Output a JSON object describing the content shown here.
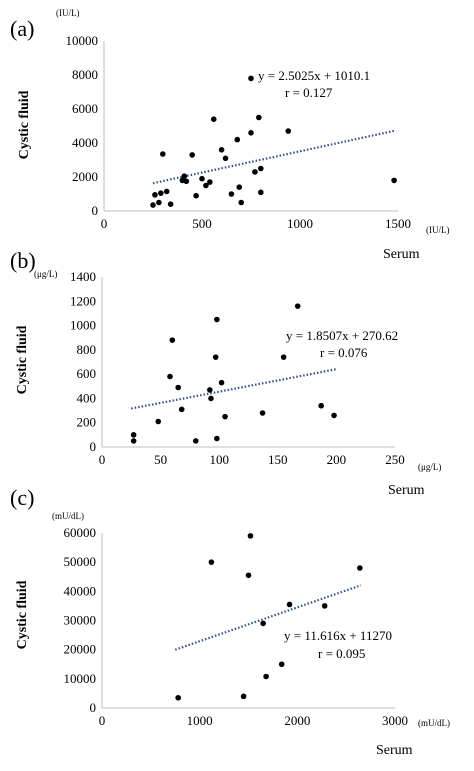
{
  "chart_data": [
    {
      "type": "scatter",
      "panel": "(a)",
      "y_unit": "(IU/L)",
      "x_unit": "(IU/L)",
      "ylabel": "Cystic fluid",
      "xlabel": "Serum",
      "xlim": [
        0,
        1500
      ],
      "ylim": [
        0,
        10000
      ],
      "x_ticks": [
        0,
        500,
        1000,
        1500
      ],
      "y_ticks": [
        0,
        2000,
        4000,
        6000,
        8000,
        10000
      ],
      "equation": "y = 2.5025x + 1010.1",
      "r_text": "r = 0.127",
      "trend": {
        "slope": 2.5025,
        "intercept": 1010.1,
        "x_range": [
          250,
          1480
        ]
      },
      "points": [
        [
          250,
          350
        ],
        [
          260,
          950
        ],
        [
          280,
          500
        ],
        [
          290,
          1050
        ],
        [
          300,
          3350
        ],
        [
          320,
          1150
        ],
        [
          340,
          400
        ],
        [
          400,
          1800
        ],
        [
          410,
          2050
        ],
        [
          420,
          1750
        ],
        [
          450,
          3300
        ],
        [
          470,
          900
        ],
        [
          500,
          1900
        ],
        [
          520,
          1500
        ],
        [
          540,
          1700
        ],
        [
          560,
          5400
        ],
        [
          600,
          3600
        ],
        [
          620,
          3100
        ],
        [
          650,
          1000
        ],
        [
          680,
          4200
        ],
        [
          690,
          1400
        ],
        [
          700,
          500
        ],
        [
          750,
          7800
        ],
        [
          750,
          4600
        ],
        [
          770,
          2300
        ],
        [
          790,
          5500
        ],
        [
          800,
          1100
        ],
        [
          800,
          2500
        ],
        [
          940,
          4700
        ],
        [
          1480,
          1800
        ]
      ]
    },
    {
      "type": "scatter",
      "panel": "(b)",
      "y_unit": "(μg/L)",
      "x_unit": "(μg/L)",
      "ylabel": "Cystic fluid",
      "xlabel": "Serum",
      "xlim": [
        0,
        250
      ],
      "ylim": [
        0,
        1400
      ],
      "x_ticks": [
        0,
        50,
        100,
        150,
        200,
        250
      ],
      "y_ticks": [
        0,
        200,
        400,
        600,
        800,
        1000,
        1200,
        1400
      ],
      "equation": "y = 1.8507x + 270.62",
      "r_text": "r = 0.076",
      "trend": {
        "slope": 1.8507,
        "intercept": 270.62,
        "x_range": [
          25,
          200
        ]
      },
      "points": [
        [
          27,
          100
        ],
        [
          27,
          50
        ],
        [
          48,
          210
        ],
        [
          58,
          580
        ],
        [
          60,
          880
        ],
        [
          65,
          490
        ],
        [
          68,
          310
        ],
        [
          80,
          50
        ],
        [
          92,
          470
        ],
        [
          93,
          400
        ],
        [
          97,
          740
        ],
        [
          98,
          1050
        ],
        [
          98,
          70
        ],
        [
          102,
          530
        ],
        [
          105,
          250
        ],
        [
          137,
          280
        ],
        [
          155,
          740
        ],
        [
          167,
          1160
        ],
        [
          187,
          340
        ],
        [
          198,
          260
        ]
      ]
    },
    {
      "type": "scatter",
      "panel": "(c)",
      "y_unit": "(mU/dL)",
      "x_unit": "(mU/dL)",
      "ylabel": "Cystic fluid",
      "xlabel": "Serum",
      "xlim": [
        0,
        3000
      ],
      "ylim": [
        0,
        60000
      ],
      "x_ticks": [
        0,
        1000,
        2000,
        3000
      ],
      "y_ticks": [
        0,
        10000,
        20000,
        30000,
        40000,
        50000,
        60000
      ],
      "equation": "y = 11.616x + 11270",
      "r_text": "r = 0.095",
      "trend": {
        "slope": 11.616,
        "intercept": 11270,
        "x_range": [
          750,
          2650
        ]
      },
      "points": [
        [
          780,
          3500
        ],
        [
          1120,
          50000
        ],
        [
          1450,
          4000
        ],
        [
          1500,
          45500
        ],
        [
          1520,
          59000
        ],
        [
          1650,
          29000
        ],
        [
          1680,
          10800
        ],
        [
          1840,
          15000
        ],
        [
          1920,
          35500
        ],
        [
          2280,
          35000
        ],
        [
          2640,
          48000
        ]
      ]
    }
  ]
}
